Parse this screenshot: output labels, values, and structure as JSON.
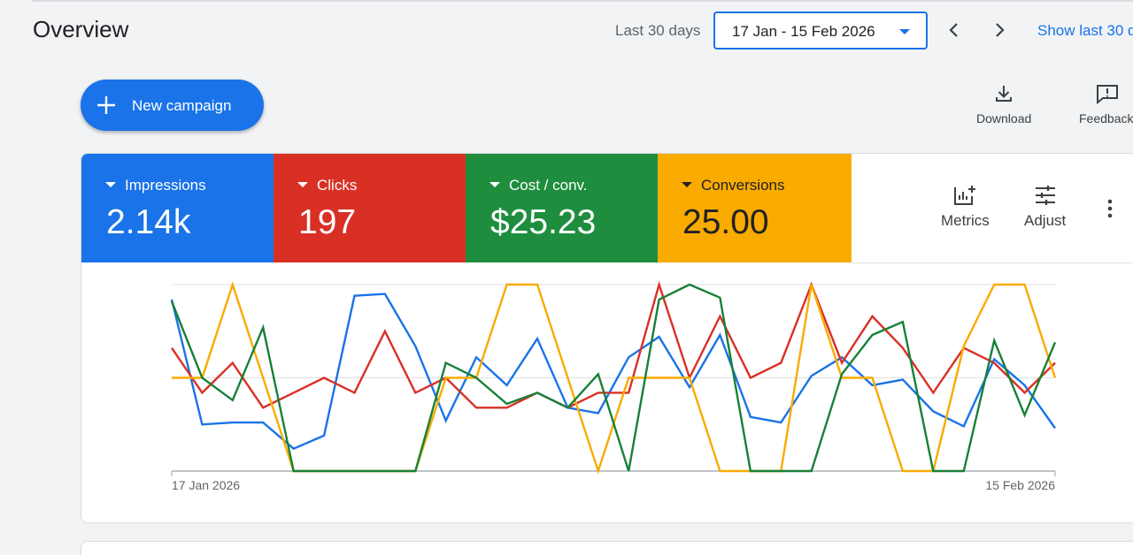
{
  "header": {
    "title": "Overview",
    "range_label": "Last 30 days",
    "date_range": "17 Jan - 15 Feb 2026",
    "show_last": "Show last 30 d"
  },
  "actions": {
    "new_campaign": "New campaign",
    "download": "Download",
    "feedback": "Feedback"
  },
  "scorecards": [
    {
      "name": "Impressions",
      "value": "2.14k",
      "color": "#1a73e8"
    },
    {
      "name": "Clicks",
      "value": "197",
      "color": "#d93025"
    },
    {
      "name": "Cost / conv.",
      "value": "$25.23",
      "color": "#1e8e3e"
    },
    {
      "name": "Conversions",
      "value": "25.00",
      "color": "#f9ab00"
    }
  ],
  "chart_tools": {
    "metrics": "Metrics",
    "adjust": "Adjust"
  },
  "chart_data": {
    "type": "line",
    "x_start_label": "17 Jan 2026",
    "x_end_label": "15 Feb 2026",
    "ylim": [
      0,
      1
    ],
    "grid": true,
    "series": [
      {
        "color": "#1a73e8",
        "values": [
          0.92,
          0.25,
          0.26,
          0.26,
          0.12,
          0.19,
          0.94,
          0.95,
          0.67,
          0.27,
          0.61,
          0.46,
          0.71,
          0.34,
          0.31,
          0.61,
          0.72,
          0.45,
          0.73,
          0.29,
          0.26,
          0.51,
          0.61,
          0.46,
          0.49,
          0.32,
          0.24,
          0.6,
          0.46,
          0.23
        ]
      },
      {
        "color": "#d93025",
        "values": [
          0.66,
          0.42,
          0.58,
          0.34,
          0.42,
          0.5,
          0.42,
          0.75,
          0.42,
          0.5,
          0.34,
          0.34,
          0.42,
          0.34,
          0.42,
          0.42,
          1.0,
          0.5,
          0.83,
          0.5,
          0.58,
          1.0,
          0.58,
          0.83,
          0.66,
          0.42,
          0.66,
          0.58,
          0.42,
          0.58
        ]
      },
      {
        "color": "#f9ab00",
        "values": [
          0.5,
          0.5,
          1.0,
          0.5,
          0.0,
          0.0,
          0.0,
          0.0,
          0.0,
          0.5,
          0.5,
          1.0,
          1.0,
          0.5,
          0.0,
          0.5,
          0.5,
          0.5,
          0.0,
          0.0,
          0.0,
          1.0,
          0.5,
          0.5,
          0.0,
          0.0,
          0.67,
          1.0,
          1.0,
          0.5
        ]
      },
      {
        "color": "#188038",
        "values": [
          0.91,
          0.5,
          0.38,
          0.77,
          0.0,
          0.0,
          0.0,
          0.0,
          0.0,
          0.58,
          0.5,
          0.36,
          0.42,
          0.34,
          0.52,
          0.0,
          0.92,
          1.0,
          0.93,
          0.0,
          0.0,
          0.0,
          0.52,
          0.73,
          0.8,
          0.0,
          0.0,
          0.7,
          0.3,
          0.69
        ]
      }
    ]
  }
}
